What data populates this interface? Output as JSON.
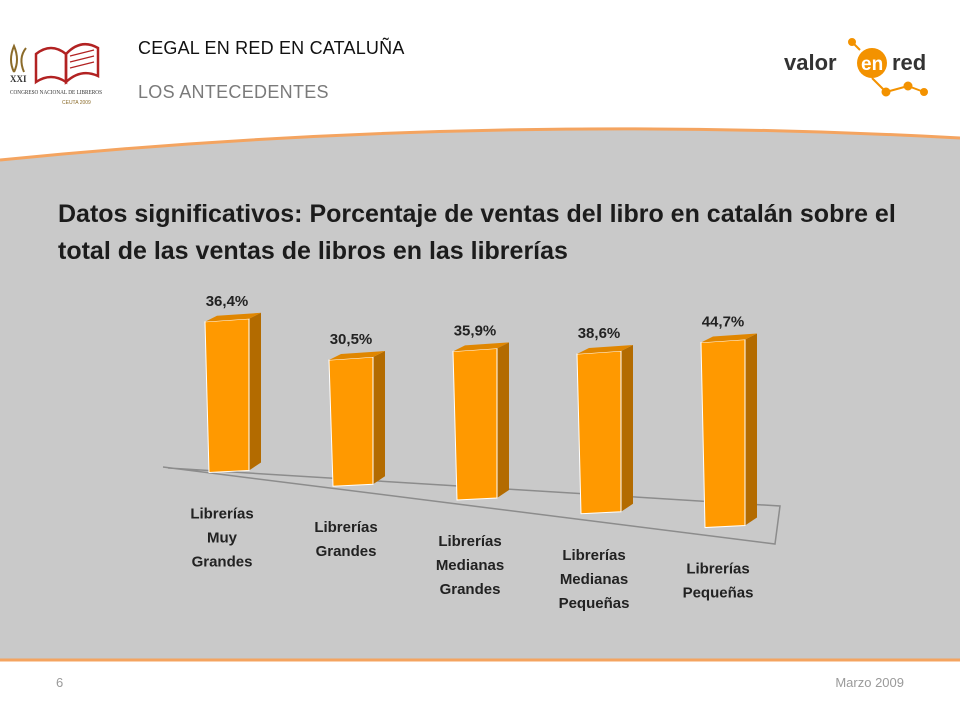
{
  "header": {
    "section": "CEGAL EN RED EN CATALUÑA",
    "subsection": "LOS ANTECEDENTES",
    "left_logo": {
      "line1": "XXI",
      "line2": "CONGRESO NACIONAL DE LIBREROS",
      "line3": "CEUTA 2009",
      "icon": "open-book-icon"
    },
    "right_logo": {
      "text_a": "valor",
      "text_b": "en",
      "text_c": "red",
      "icon": "network-nodes-icon"
    }
  },
  "slide_title": "Datos significativos: Porcentaje de ventas del libro en catalán sobre el total de las ventas de libros en las librerías",
  "footer": {
    "page_number": "6",
    "date": "Marzo 2009"
  },
  "colors": {
    "bar_front": "#ff9900",
    "bar_side": "#b36b00",
    "bar_top": "#e08600",
    "panel": "#c9c9c9",
    "accent_line": "#f4a460",
    "orange": "#f39200"
  },
  "chart_data": {
    "type": "bar",
    "style": "3d-column",
    "categories": [
      "Librerías Muy Grandes",
      "Librerías Grandes",
      "Librerías Medianas Grandes",
      "Librerías Medianas Pequeñas",
      "Librerías Pequeñas"
    ],
    "category_lines": [
      [
        "Librerías",
        "Muy",
        "Grandes"
      ],
      [
        "Librerías",
        "Grandes"
      ],
      [
        "Librerías",
        "Medianas",
        "Grandes"
      ],
      [
        "Librerías",
        "Medianas",
        "Pequeñas"
      ],
      [
        "Librerías",
        "Pequeñas"
      ]
    ],
    "values": [
      36.4,
      30.5,
      35.9,
      38.6,
      44.7
    ],
    "data_labels": [
      "36,4%",
      "30,5%",
      "35,9%",
      "38,6%",
      "44,7%"
    ],
    "unit": "%",
    "ylim": [
      0,
      44.7
    ],
    "grid": false,
    "legend": "none"
  }
}
